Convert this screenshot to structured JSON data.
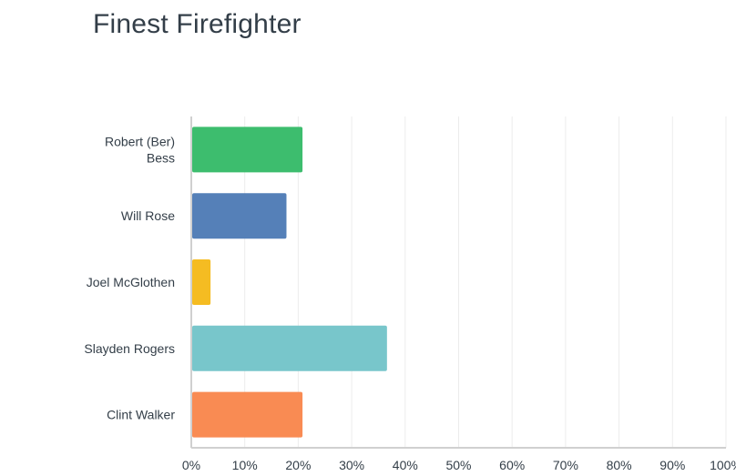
{
  "chart_data": {
    "type": "bar",
    "orientation": "horizontal",
    "title": "Finest Firefighter",
    "categories": [
      [
        "Robert (Ber)",
        "Bess"
      ],
      [
        "Will Rose"
      ],
      [
        "Joel McGlothen"
      ],
      [
        "Slayden Rogers"
      ],
      [
        "Clint Walker"
      ]
    ],
    "values": [
      20.8,
      17.8,
      3.6,
      36.6,
      20.8
    ],
    "colors": [
      "#3dbd6e",
      "#5580b8",
      "#f5bc22",
      "#78c6cb",
      "#f98b53"
    ],
    "xlim": [
      0,
      100
    ],
    "xticks": [
      "0%",
      "10%",
      "20%",
      "30%",
      "40%",
      "50%",
      "60%",
      "70%",
      "80%",
      "90%",
      "100%"
    ],
    "grid": true,
    "legend": "none"
  }
}
